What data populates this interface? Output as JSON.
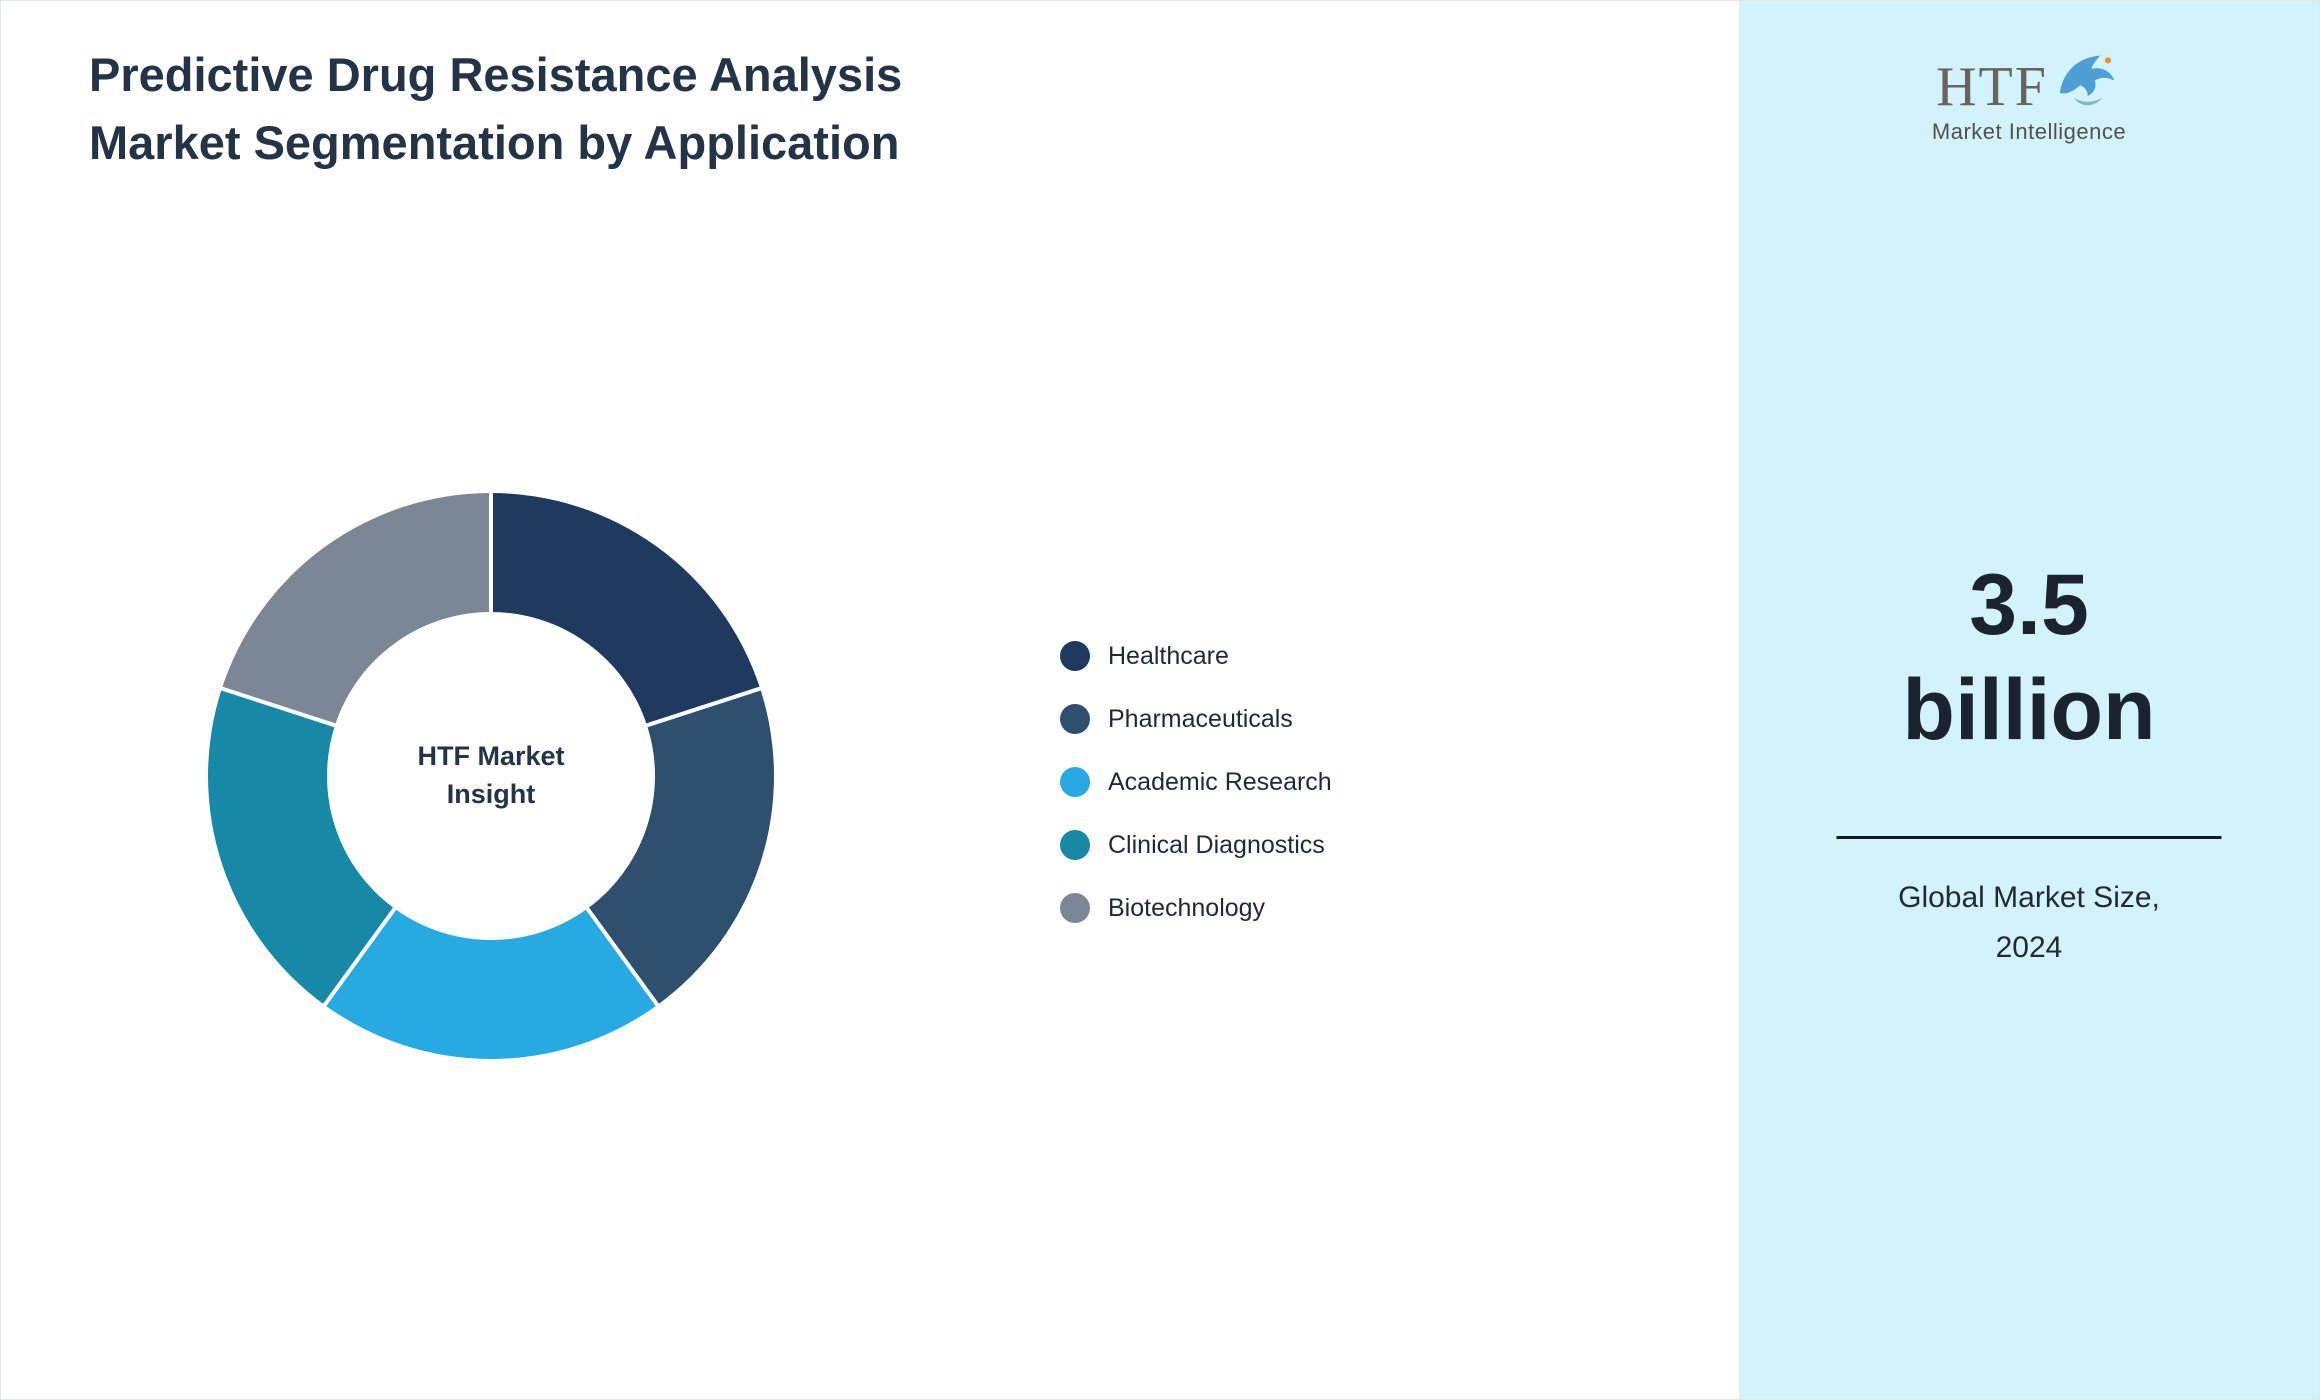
{
  "page": {
    "title": "Predictive Drug Resistance Analysis Market Segmentation by Application"
  },
  "chart_data": {
    "type": "pie",
    "subtype": "donut",
    "title": "Predictive Drug Resistance Analysis Market Segmentation by Application",
    "center_label": "HTF Market Insight",
    "categories": [
      "Healthcare",
      "Pharmaceuticals",
      "Academic Research",
      "Clinical Diagnostics",
      "Biotechnology"
    ],
    "values": [
      20,
      20,
      20,
      20,
      20
    ],
    "unit": "percent",
    "colors": [
      "#1e3a5f",
      "#2e4f6e",
      "#27aae1",
      "#1789a6",
      "#7b8794"
    ],
    "legend_position": "right",
    "start_angle_deg": 0,
    "inner_radius_ratio": 0.58,
    "separator_color": "#ffffff"
  },
  "sidebar": {
    "background_color": "#d2f3fb",
    "logo": {
      "text": "HTF",
      "subtext": "Market Intelligence"
    },
    "stat": {
      "value_line1": "3.5",
      "value_line2": "billion",
      "label": "Global Market Size, 2024"
    }
  }
}
